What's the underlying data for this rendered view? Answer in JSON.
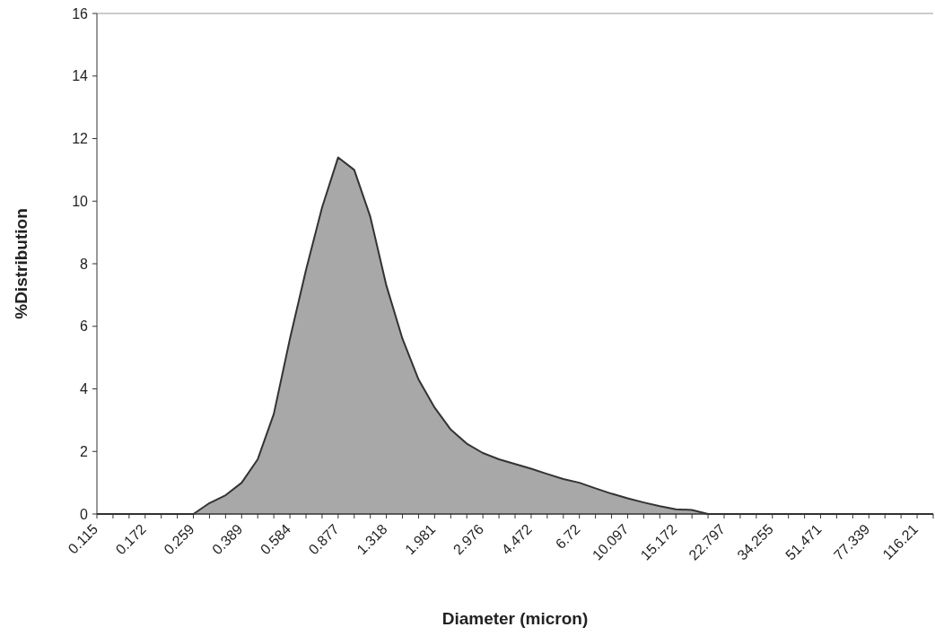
{
  "chart_data": {
    "type": "area",
    "xlabel": "Diameter (micron)",
    "ylabel": "%Distribution",
    "categories": [
      "0.115",
      null,
      null,
      "0.172",
      null,
      null,
      "0.259",
      null,
      null,
      "0.389",
      null,
      null,
      "0.584",
      null,
      null,
      "0.877",
      null,
      null,
      "1.318",
      null,
      null,
      "1.981",
      null,
      null,
      "2.976",
      null,
      null,
      "4.472",
      null,
      null,
      "6.72",
      null,
      null,
      "10.097",
      null,
      null,
      "15.172",
      null,
      null,
      "22.797",
      null,
      null,
      "34.255",
      null,
      null,
      "51.471",
      null,
      null,
      "77.339",
      null,
      null,
      "116.21",
      null
    ],
    "values": [
      0,
      0,
      0,
      0,
      0,
      0,
      0,
      0.35,
      0.6,
      1.0,
      1.75,
      3.2,
      5.6,
      7.8,
      9.8,
      11.4,
      11.0,
      9.5,
      7.3,
      5.6,
      4.3,
      3.4,
      2.7,
      2.25,
      1.95,
      1.75,
      1.6,
      1.45,
      1.28,
      1.12,
      1.0,
      0.82,
      0.65,
      0.5,
      0.37,
      0.25,
      0.15,
      0.13,
      0,
      0,
      0,
      0,
      0,
      0,
      0,
      0,
      0,
      0,
      0,
      0,
      0,
      0,
      0
    ],
    "color": "#a8a8a8",
    "ylim": [
      0,
      16
    ],
    "yticks": [
      0,
      2,
      4,
      6,
      8,
      10,
      12,
      14,
      16
    ],
    "grid": false
  }
}
